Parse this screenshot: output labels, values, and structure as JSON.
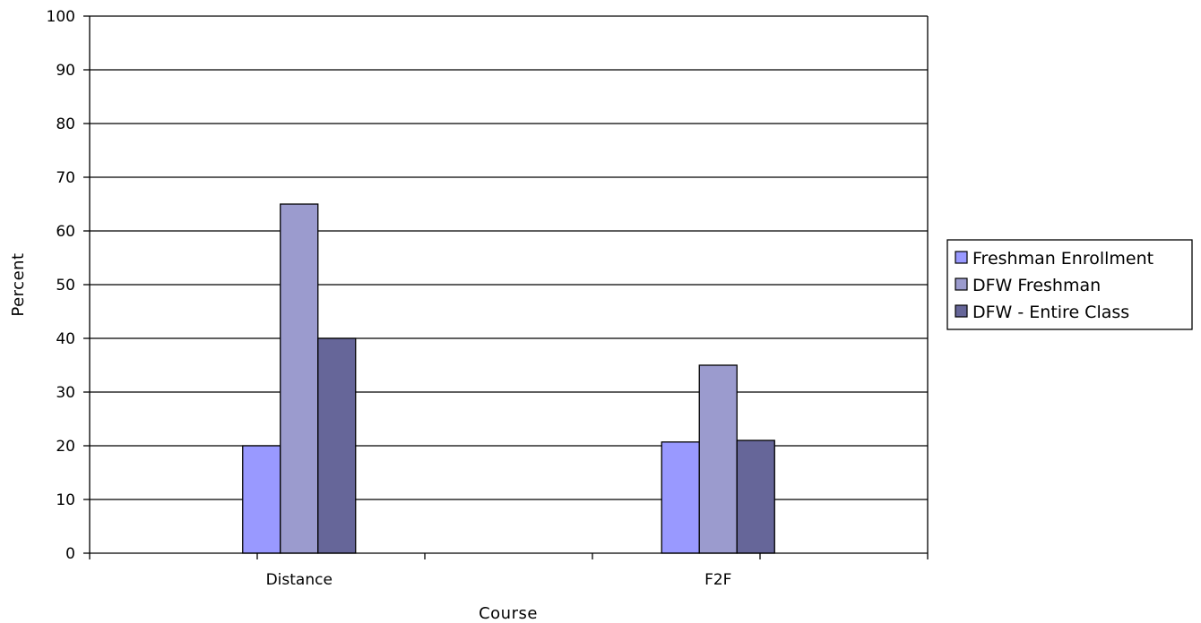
{
  "chart_data": {
    "type": "bar",
    "title": "",
    "xlabel": "Course",
    "ylabel": "Percent",
    "categories": [
      "Distance",
      "F2F"
    ],
    "series": [
      {
        "name": "Freshman Enrollment",
        "values": [
          20,
          20.7
        ],
        "color": "#9999ff"
      },
      {
        "name": "DFW Freshman",
        "values": [
          65,
          35
        ],
        "color": "#9b9bce"
      },
      {
        "name": "DFW - Entire Class",
        "values": [
          40,
          21
        ],
        "color": "#666699"
      }
    ],
    "ylim": [
      0,
      100
    ],
    "yticks": [
      0,
      10,
      20,
      30,
      40,
      50,
      60,
      70,
      80,
      90,
      100
    ],
    "grid": true,
    "legend_position": "right"
  }
}
